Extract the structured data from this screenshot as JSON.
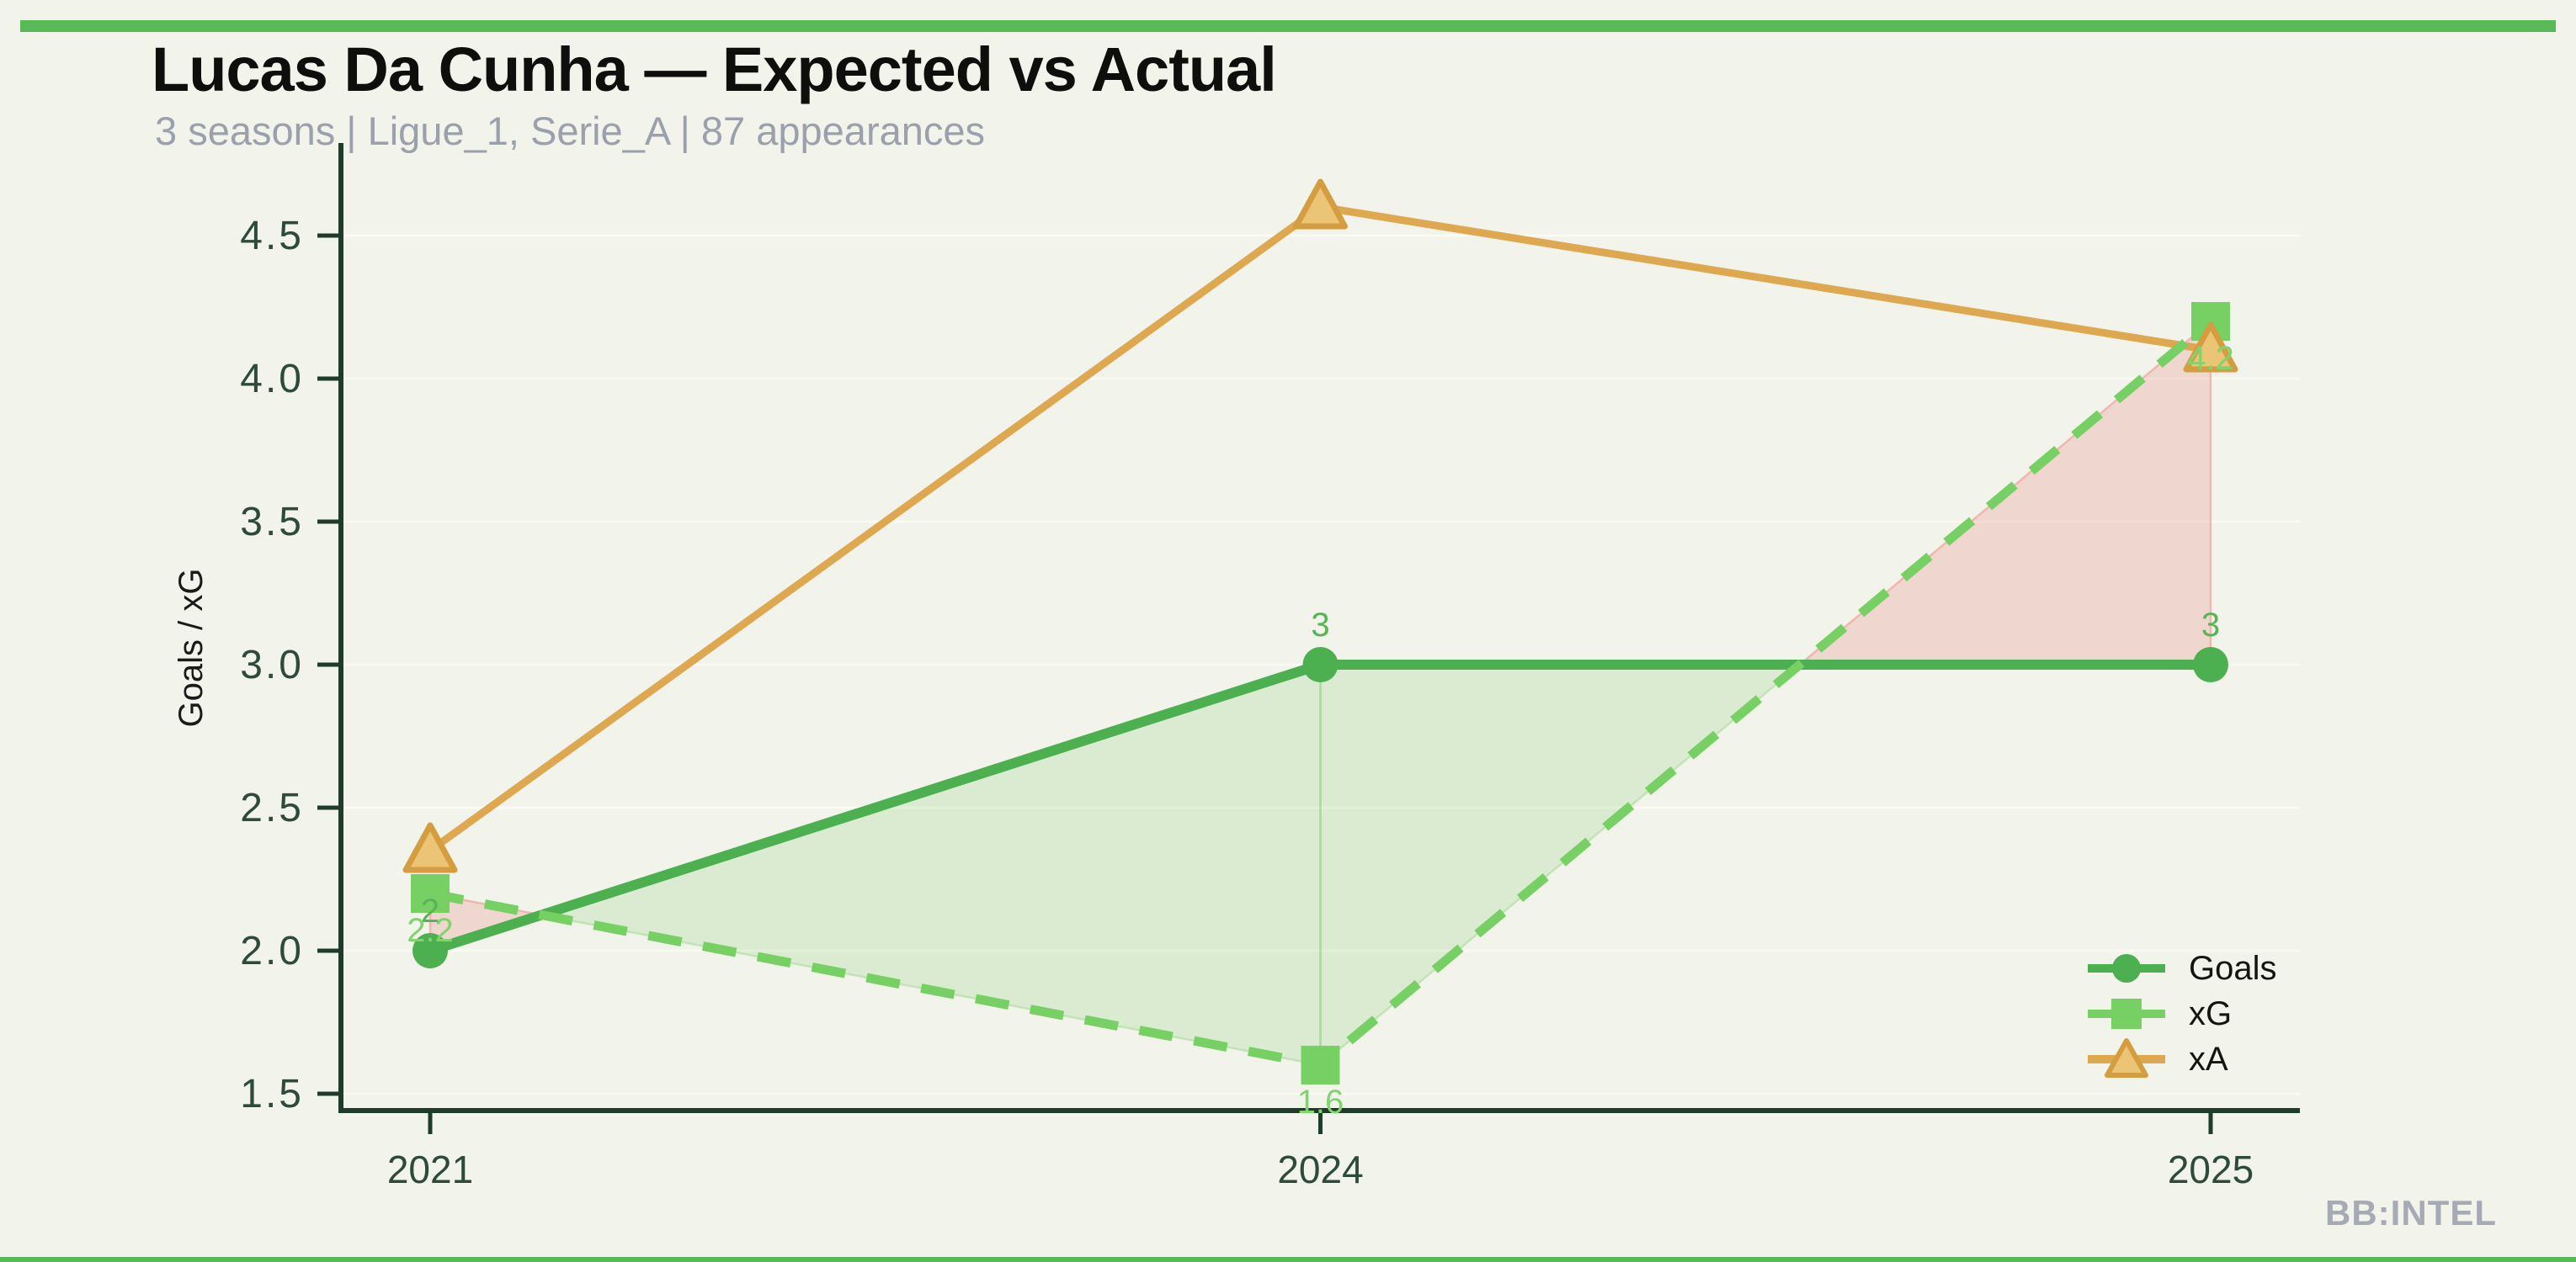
{
  "page": {
    "background": "#f2f3eb",
    "accent_bar_color": "#5ab957",
    "watermark": "BB:INTEL"
  },
  "header": {
    "title": "Lucas Da Cunha — Expected vs Actual",
    "subtitle": "3 seasons | Ligue_1, Serie_A | 87 appearances"
  },
  "chart_data": {
    "type": "line",
    "title": "Lucas Da Cunha — Expected vs Actual",
    "categories": [
      "2021",
      "2024",
      "2025"
    ],
    "series": [
      {
        "name": "Goals",
        "values": [
          2,
          3,
          3
        ],
        "point_labels": [
          "2",
          "3",
          "3"
        ],
        "label_position": "above",
        "label_color": "#58b456",
        "color": "#4caf50",
        "line_style": "solid",
        "marker": "circle"
      },
      {
        "name": "xG",
        "values": [
          2.2,
          1.6,
          4.2
        ],
        "point_labels": [
          "2.2",
          "1.6",
          "4.2"
        ],
        "label_position": "below",
        "label_color": "#80d46e",
        "color": "#76d063",
        "line_style": "dashed",
        "marker": "square"
      },
      {
        "name": "xA",
        "values": [
          2.35,
          4.6,
          4.1
        ],
        "point_labels": [
          "",
          "",
          ""
        ],
        "label_position": "none",
        "label_color": "#dda84f",
        "color": "#dda84f",
        "line_style": "solid",
        "marker": "triangle"
      }
    ],
    "xlabel": "",
    "ylabel": "Goals / xG",
    "yticks": [
      "1.5",
      "2.0",
      "2.5",
      "3.0",
      "3.5",
      "4.0",
      "4.5"
    ],
    "ylim": [
      1.5,
      4.5
    ],
    "grid": "horizontal-faint",
    "legend_position": "lower-right",
    "axis_color": "#1f3c2b",
    "tick_label_color": "#2d4b37",
    "fills": {
      "over_fill": "rgba(123,205,106,0.20)",
      "over_stroke": "rgba(140,210,120,0.38)",
      "under_fill": "rgba(233,148,141,0.30)",
      "under_stroke": "rgba(236,160,152,0.65)"
    },
    "marker_triangle_fill": "#ecc475",
    "marker_triangle_stroke": "#d49d40",
    "gridline_color": "#f9faf2"
  }
}
